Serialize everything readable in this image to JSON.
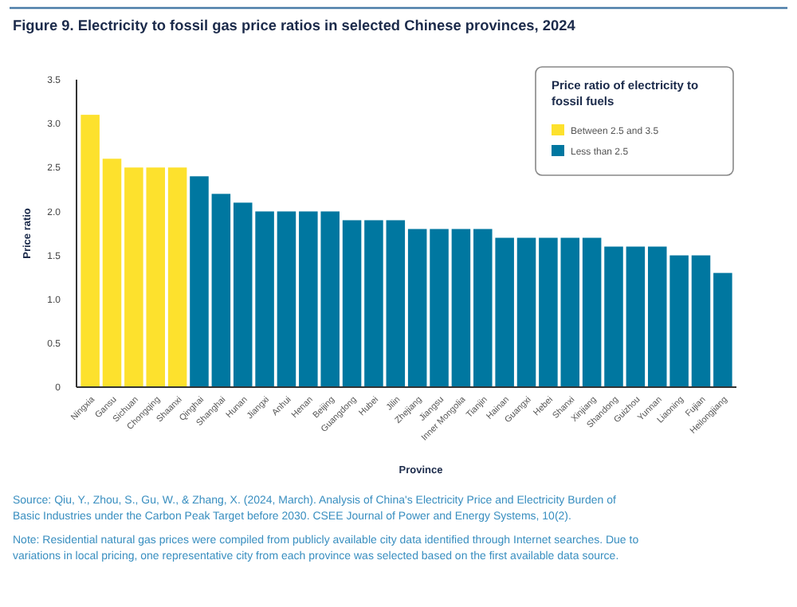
{
  "chart_data": {
    "type": "bar",
    "title": "Figure 9. Electricity to fossil gas price ratios in selected Chinese provinces, 2024",
    "xlabel": "Province",
    "ylabel": "Price ratio",
    "legend_title": "Price ratio of electricity to fossil fuels",
    "legend": "top right",
    "grid": false,
    "categories": [
      "Ningxia",
      "Gansu",
      "Sichuan",
      "Chongqing",
      "Shaanxi",
      "Qinghai",
      "Shanghai",
      "Hunan",
      "Jiangxi",
      "Anhui",
      "Henan",
      "Beijing",
      "Guangdong",
      "Hubei",
      "Jilin",
      "Zhejiang",
      "Jiangsu",
      "Inner Mongolia",
      "Tianjin",
      "Hainan",
      "Guangxi",
      "Hebei",
      "Shanxi",
      "Xinjiang",
      "Shandong",
      "Guizhou",
      "Yunnan",
      "Liaoning",
      "Fujian",
      "Heilongjiang"
    ],
    "series": [
      {
        "name": "Between 2.5 and 3.5",
        "color": "#fde12d",
        "values": [
          3.1,
          2.6,
          2.5,
          2.5,
          2.5,
          null,
          null,
          null,
          null,
          null,
          null,
          null,
          null,
          null,
          null,
          null,
          null,
          null,
          null,
          null,
          null,
          null,
          null,
          null,
          null,
          null,
          null,
          null,
          null,
          null
        ]
      },
      {
        "name": "Less than 2.5",
        "color": "#0077a0",
        "values": [
          null,
          null,
          null,
          null,
          null,
          2.4,
          2.2,
          2.1,
          2.0,
          2.0,
          2.0,
          2.0,
          1.9,
          1.9,
          1.9,
          1.8,
          1.8,
          1.8,
          1.8,
          1.7,
          1.7,
          1.7,
          1.7,
          1.7,
          1.6,
          1.6,
          1.6,
          1.5,
          1.5,
          1.3
        ]
      }
    ],
    "ylim": [
      0,
      3.5
    ],
    "yticks": [
      0,
      0.5,
      {
        "value": 1,
        "label": "1.0"
      },
      1.5,
      {
        "value": 2,
        "label": "2.0"
      },
      2.5,
      {
        "value": 3,
        "label": "3.0"
      },
      3.5
    ],
    "annotations": [
      "Source: Qiu, Y., Zhou, S., Gu, W., & Zhang, X. (2024, March). Analysis of China's Electricity Price and Electricity Burden of Basic Industries under the Carbon Peak Target before 2030. CSEE Journal of Power and Energy Systems, 10(2).",
      "Note: Residential natural gas prices were compiled from publicly available city data identified through Internet searches. Due to variations in local pricing, one representative city from each province was selected based on the first available data source."
    ]
  }
}
